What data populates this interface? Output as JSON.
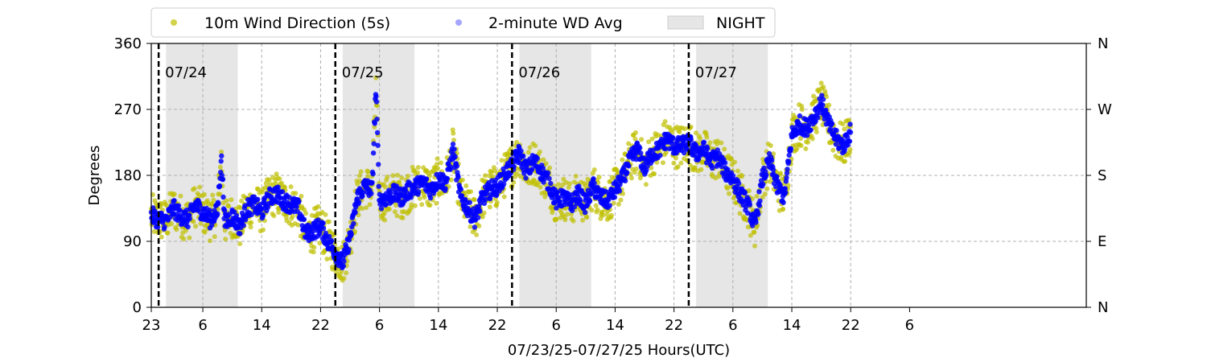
{
  "chart_data": {
    "type": "scatter",
    "xlabel": "07/23/25-07/27/25  Hours(UTC)",
    "ylabel": "Degrees",
    "x_range_hours": [
      0,
      127
    ],
    "x_ticks": [
      {
        "hour": 0,
        "label": "23"
      },
      {
        "hour": 7,
        "label": "6"
      },
      {
        "hour": 15,
        "label": "14"
      },
      {
        "hour": 23,
        "label": "22"
      },
      {
        "hour": 31,
        "label": "6"
      },
      {
        "hour": 39,
        "label": "14"
      },
      {
        "hour": 47,
        "label": "22"
      },
      {
        "hour": 55,
        "label": "6"
      },
      {
        "hour": 63,
        "label": "14"
      },
      {
        "hour": 71,
        "label": "22"
      },
      {
        "hour": 79,
        "label": "6"
      },
      {
        "hour": 87,
        "label": "14"
      },
      {
        "hour": 95,
        "label": "22"
      },
      {
        "hour": 103,
        "label": "6"
      }
    ],
    "ylim": [
      0,
      360
    ],
    "y_ticks": [
      0,
      90,
      180,
      270,
      360
    ],
    "y2_ticks": [
      {
        "value": 0,
        "label": "N"
      },
      {
        "value": 90,
        "label": "E"
      },
      {
        "value": 180,
        "label": "S"
      },
      {
        "value": 270,
        "label": "W"
      },
      {
        "value": 360,
        "label": "N"
      }
    ],
    "grid": true,
    "legend_position": "top-left, above plot",
    "legend": [
      {
        "label": "10m Wind Direction (5s)",
        "kind": "marker",
        "color": "#bfbf00"
      },
      {
        "label": "2-minute WD Avg",
        "kind": "marker",
        "color": "#0000ff"
      },
      {
        "label": "NIGHT",
        "kind": "patch",
        "color": "#d9d9d9"
      }
    ],
    "night_bands": [
      [
        2,
        11.75
      ],
      [
        26,
        35.75
      ],
      [
        50,
        59.75
      ],
      [
        74,
        83.75
      ]
    ],
    "day_markers": [
      {
        "hour": 1,
        "label": "07/24"
      },
      {
        "hour": 25,
        "label": "07/25"
      },
      {
        "hour": 49,
        "label": "07/26"
      },
      {
        "hour": 73,
        "label": "07/27"
      }
    ],
    "series": [
      {
        "name": "10m Wind Direction (5s)",
        "color": "#bfbf00",
        "spread": 30,
        "x": [
          0,
          1,
          2,
          3,
          4,
          5,
          6,
          7,
          8,
          9,
          9.5,
          10,
          11,
          12,
          13,
          14,
          15,
          16,
          17,
          18,
          19,
          20,
          21,
          22,
          23,
          24,
          25,
          26,
          27,
          28,
          29,
          30,
          30.5,
          31,
          32,
          33,
          34,
          35,
          36,
          37,
          38,
          39,
          40,
          41,
          42,
          43,
          44,
          45,
          46,
          47,
          48,
          49,
          50,
          51,
          52,
          53,
          54,
          55,
          56,
          57,
          58,
          59,
          60,
          61,
          62,
          63,
          64,
          65,
          66,
          67,
          68,
          69,
          70,
          71,
          72,
          73,
          74,
          75,
          76,
          77,
          78,
          79,
          80,
          81,
          82,
          83,
          84,
          85,
          86,
          87,
          88,
          89,
          90,
          91,
          92,
          93,
          94,
          95
        ],
        "values": [
          125,
          120,
          118,
          135,
          125,
          120,
          140,
          130,
          120,
          130,
          205,
          115,
          125,
          110,
          135,
          140,
          130,
          150,
          155,
          145,
          140,
          135,
          100,
          105,
          110,
          90,
          75,
          60,
          95,
          150,
          165,
          160,
          300,
          145,
          150,
          155,
          150,
          160,
          165,
          170,
          160,
          175,
          170,
          215,
          150,
          135,
          120,
          150,
          160,
          165,
          180,
          195,
          210,
          185,
          200,
          185,
          170,
          145,
          150,
          140,
          155,
          140,
          165,
          150,
          145,
          160,
          175,
          200,
          215,
          190,
          210,
          215,
          230,
          220,
          220,
          225,
          210,
          215,
          200,
          205,
          185,
          175,
          155,
          140,
          110,
          175,
          200,
          165,
          150,
          235,
          250,
          245,
          260,
          280,
          250,
          230,
          220,
          240
        ]
      },
      {
        "name": "2-minute WD Avg",
        "color": "#0000ff",
        "spread": 12,
        "x": [
          0,
          1,
          2,
          3,
          4,
          5,
          6,
          7,
          8,
          9,
          9.5,
          10,
          11,
          12,
          13,
          14,
          15,
          16,
          17,
          18,
          19,
          20,
          21,
          22,
          23,
          24,
          25,
          26,
          27,
          28,
          29,
          30,
          30.5,
          31,
          32,
          33,
          34,
          35,
          36,
          37,
          38,
          39,
          40,
          41,
          42,
          43,
          44,
          45,
          46,
          47,
          48,
          49,
          50,
          51,
          52,
          53,
          54,
          55,
          56,
          57,
          58,
          59,
          60,
          61,
          62,
          63,
          64,
          65,
          66,
          67,
          68,
          69,
          70,
          71,
          72,
          73,
          74,
          75,
          76,
          77,
          78,
          79,
          80,
          81,
          82,
          83,
          84,
          85,
          86,
          87,
          88,
          89,
          90,
          91,
          92,
          93,
          94,
          95
        ],
        "values": [
          125,
          120,
          118,
          135,
          125,
          120,
          140,
          130,
          120,
          130,
          205,
          115,
          125,
          110,
          135,
          140,
          130,
          150,
          155,
          145,
          140,
          135,
          100,
          105,
          110,
          90,
          75,
          60,
          95,
          150,
          165,
          160,
          300,
          145,
          150,
          155,
          150,
          160,
          165,
          170,
          160,
          175,
          170,
          215,
          150,
          135,
          120,
          150,
          160,
          165,
          180,
          195,
          210,
          185,
          200,
          185,
          170,
          145,
          150,
          140,
          155,
          140,
          165,
          150,
          145,
          160,
          175,
          200,
          215,
          190,
          210,
          215,
          230,
          220,
          220,
          225,
          210,
          215,
          200,
          205,
          185,
          175,
          155,
          140,
          110,
          175,
          200,
          165,
          150,
          235,
          250,
          245,
          260,
          280,
          250,
          230,
          220,
          240
        ]
      }
    ]
  }
}
